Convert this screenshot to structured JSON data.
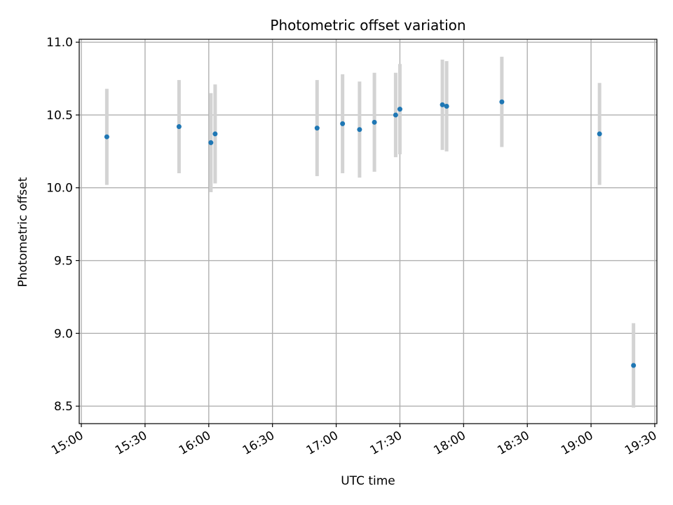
{
  "chart_data": {
    "type": "scatter",
    "title": "Photometric offset variation",
    "xlabel": "UTC time",
    "ylabel": "Photometric offset",
    "x_unit": "minutes",
    "xlim": [
      "14:59",
      "19:31"
    ],
    "ylim": [
      8.38,
      11.02
    ],
    "grid": true,
    "x_ticks": [
      {
        "label": "15:00",
        "value": "15:00"
      },
      {
        "label": "15:30",
        "value": "15:30"
      },
      {
        "label": "16:00",
        "value": "16:00"
      },
      {
        "label": "16:30",
        "value": "16:30"
      },
      {
        "label": "17:00",
        "value": "17:00"
      },
      {
        "label": "17:30",
        "value": "17:30"
      },
      {
        "label": "18:00",
        "value": "18:00"
      },
      {
        "label": "18:30",
        "value": "18:30"
      },
      {
        "label": "19:00",
        "value": "19:00"
      },
      {
        "label": "19:30",
        "value": "19:30"
      }
    ],
    "y_ticks": [
      {
        "label": "8.5",
        "value": 8.5
      },
      {
        "label": "9.0",
        "value": 9.0
      },
      {
        "label": "9.5",
        "value": 9.5
      },
      {
        "label": "10.0",
        "value": 10.0
      },
      {
        "label": "10.5",
        "value": 10.5
      },
      {
        "label": "11.0",
        "value": 11.0
      }
    ],
    "point_color": "#1f77b4",
    "errorbar_color": "#d3d3d3",
    "points": [
      {
        "x": "15:12",
        "y": 10.35,
        "err": 0.33
      },
      {
        "x": "15:46",
        "y": 10.42,
        "err": 0.32
      },
      {
        "x": "16:01",
        "y": 10.31,
        "err": 0.34
      },
      {
        "x": "16:03",
        "y": 10.37,
        "err": 0.34
      },
      {
        "x": "16:51",
        "y": 10.41,
        "err": 0.33
      },
      {
        "x": "17:03",
        "y": 10.44,
        "err": 0.34
      },
      {
        "x": "17:11",
        "y": 10.4,
        "err": 0.33
      },
      {
        "x": "17:18",
        "y": 10.45,
        "err": 0.34
      },
      {
        "x": "17:28",
        "y": 10.5,
        "err": 0.29
      },
      {
        "x": "17:30",
        "y": 10.54,
        "err": 0.31
      },
      {
        "x": "17:50",
        "y": 10.57,
        "err": 0.31
      },
      {
        "x": "17:52",
        "y": 10.56,
        "err": 0.31
      },
      {
        "x": "18:18",
        "y": 10.59,
        "err": 0.31
      },
      {
        "x": "19:04",
        "y": 10.37,
        "err": 0.35
      },
      {
        "x": "19:20",
        "y": 8.78,
        "err": 0.29
      }
    ]
  }
}
